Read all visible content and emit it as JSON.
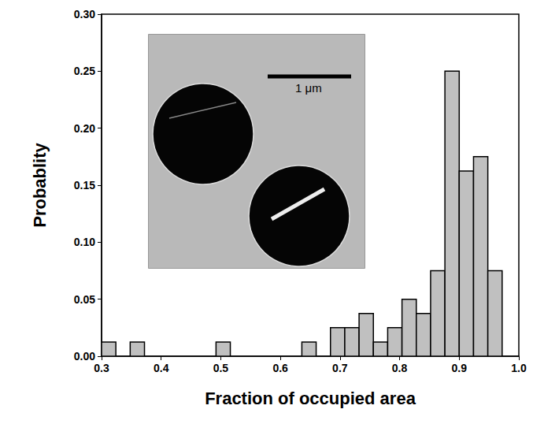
{
  "chart_data": {
    "type": "histogram",
    "x_label": "Fraction of occupied area",
    "y_label": "Probablity",
    "bins": [
      0.3,
      0.324,
      0.348,
      0.372,
      0.396,
      0.42,
      0.444,
      0.468,
      0.492,
      0.516,
      0.54,
      0.564,
      0.588,
      0.612,
      0.636,
      0.66,
      0.684,
      0.708,
      0.732,
      0.756,
      0.78,
      0.804,
      0.828,
      0.852,
      0.876,
      0.9,
      0.924,
      0.948,
      0.972,
      0.996
    ],
    "values": [
      0.0125,
      0,
      0.0125,
      0,
      0,
      0,
      0,
      0,
      0.0125,
      0,
      0,
      0,
      0,
      0,
      0.0125,
      0,
      0.025,
      0.025,
      0.0375,
      0.0125,
      0.025,
      0.05,
      0.0375,
      0.075,
      0.25,
      0.1625,
      0.175,
      0.075,
      0
    ],
    "color": "#c0c0c0",
    "xlim": [
      0.3,
      1.0
    ],
    "xticks": [
      0.3,
      0.4,
      0.5,
      0.6,
      0.7,
      0.8,
      0.9,
      {
        "value": 1.0,
        "label": "1.0"
      }
    ],
    "ylim": [
      0,
      0.3
    ],
    "yticks": [
      {
        "value": 0,
        "label": "0.00"
      },
      0.05,
      {
        "value": 0.1,
        "label": "0.10"
      },
      0.15,
      {
        "value": 0.2,
        "label": "0.20"
      },
      0.25,
      {
        "value": 0.3,
        "label": "0.30"
      }
    ],
    "grid": false,
    "annotations": [
      "1 μm"
    ]
  }
}
